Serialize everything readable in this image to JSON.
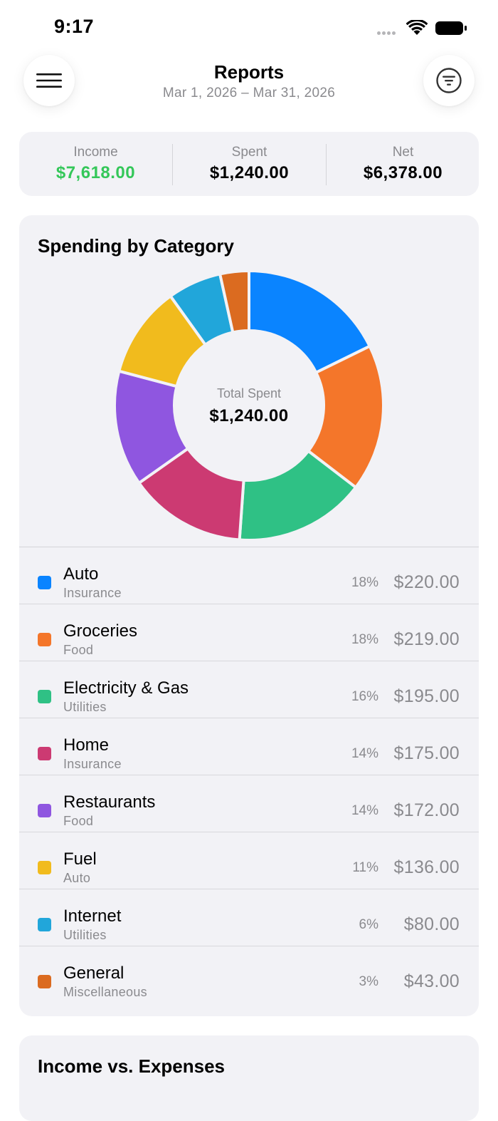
{
  "status_bar": {
    "time": "9:17"
  },
  "header": {
    "title": "Reports",
    "date_range": "Mar 1, 2026 – Mar 31, 2026",
    "menu_icon": "hamburger-icon",
    "filter_icon": "filter-icon"
  },
  "summary": {
    "income_label": "Income",
    "income_value": "$7,618.00",
    "spent_label": "Spent",
    "spent_value": "$1,240.00",
    "net_label": "Net",
    "net_value": "$6,378.00",
    "income_color": "#34c759"
  },
  "spending": {
    "title": "Spending by Category",
    "center_label": "Total Spent",
    "center_value": "$1,240.00"
  },
  "chart_data": {
    "type": "pie",
    "title": "Spending by Category",
    "categories": [
      "Auto",
      "Groceries",
      "Electricity & Gas",
      "Home",
      "Restaurants",
      "Fuel",
      "Internet",
      "General"
    ],
    "values": [
      220,
      219,
      195,
      175,
      172,
      136,
      80,
      43
    ],
    "colors": [
      "#0a84ff",
      "#f4762a",
      "#2fc185",
      "#cc3a72",
      "#8f56e0",
      "#f1bb1d",
      "#21a6da",
      "#db6b20"
    ],
    "donut": true
  },
  "categories": [
    {
      "name": "Auto",
      "group": "Insurance",
      "percent": "18%",
      "amount": "$220.00",
      "color": "#0a84ff"
    },
    {
      "name": "Groceries",
      "group": "Food",
      "percent": "18%",
      "amount": "$219.00",
      "color": "#f4762a"
    },
    {
      "name": "Electricity & Gas",
      "group": "Utilities",
      "percent": "16%",
      "amount": "$195.00",
      "color": "#2fc185"
    },
    {
      "name": "Home",
      "group": "Insurance",
      "percent": "14%",
      "amount": "$175.00",
      "color": "#cc3a72"
    },
    {
      "name": "Restaurants",
      "group": "Food",
      "percent": "14%",
      "amount": "$172.00",
      "color": "#8f56e0"
    },
    {
      "name": "Fuel",
      "group": "Auto",
      "percent": "11%",
      "amount": "$136.00",
      "color": "#f1bb1d"
    },
    {
      "name": "Internet",
      "group": "Utilities",
      "percent": "6%",
      "amount": "$80.00",
      "color": "#21a6da"
    },
    {
      "name": "General",
      "group": "Miscellaneous",
      "percent": "3%",
      "amount": "$43.00",
      "color": "#db6b20"
    }
  ],
  "income_vs_expenses": {
    "title": "Income vs. Expenses"
  }
}
